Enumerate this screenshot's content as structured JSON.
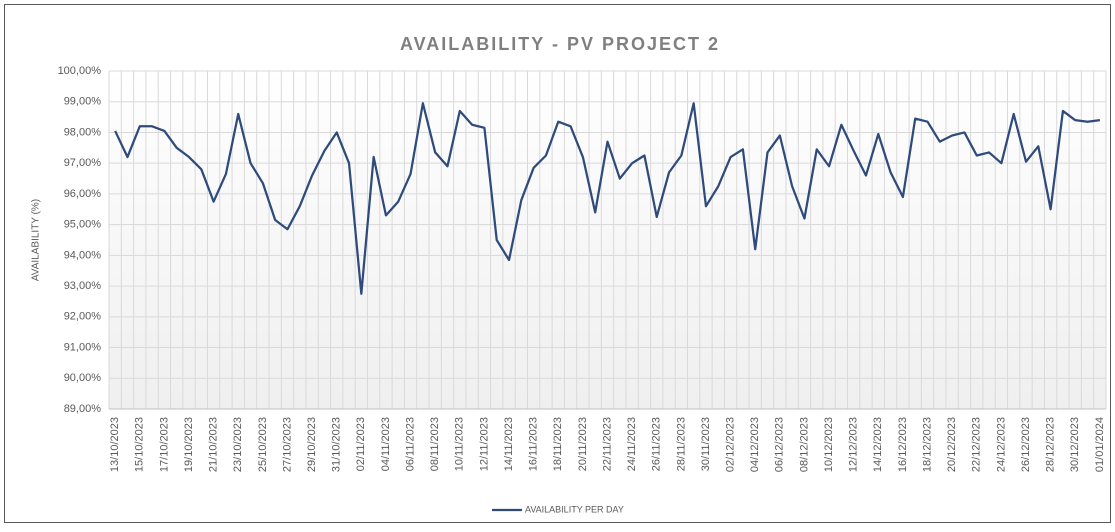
{
  "chart_data": {
    "type": "line",
    "title": "AVAILABILITY - PV PROJECT 2",
    "y_label": "AVAILABILITY (%)",
    "categories": [
      "13/10/2023",
      null,
      "15/10/2023",
      null,
      "17/10/2023",
      null,
      "19/10/2023",
      null,
      "21/10/2023",
      null,
      "23/10/2023",
      null,
      "25/10/2023",
      null,
      "27/10/2023",
      null,
      "29/10/2023",
      null,
      "31/10/2023",
      null,
      "02/11/2023",
      null,
      "04/11/2023",
      null,
      "06/11/2023",
      null,
      "08/11/2023",
      null,
      "10/11/2023",
      null,
      "12/11/2023",
      null,
      "14/11/2023",
      null,
      "16/11/2023",
      null,
      "18/11/2023",
      null,
      "20/11/2023",
      null,
      "22/11/2023",
      null,
      "24/11/2023",
      null,
      "26/11/2023",
      null,
      "28/11/2023",
      null,
      "30/11/2023",
      null,
      "02/12/2023",
      null,
      "04/12/2023",
      null,
      "06/12/2023",
      null,
      "08/12/2023",
      null,
      "10/12/2023",
      null,
      "12/12/2023",
      null,
      "14/12/2023",
      null,
      "16/12/2023",
      null,
      "18/12/2023",
      null,
      "20/12/2023",
      null,
      "22/12/2023",
      null,
      "24/12/2023",
      null,
      "26/12/2023",
      null,
      "28/12/2023",
      null,
      "30/12/2023",
      null,
      "01/01/2024"
    ],
    "series": [
      {
        "name": "AVAILABILITY PER DAY",
        "color": "#2f4b7c",
        "values": [
          98.05,
          97.2,
          98.2,
          98.2,
          98.05,
          97.5,
          97.2,
          96.8,
          95.75,
          96.65,
          98.6,
          97.0,
          96.35,
          95.15,
          94.85,
          95.6,
          96.6,
          97.4,
          98.0,
          97.0,
          92.75,
          97.2,
          95.3,
          95.75,
          96.65,
          98.95,
          97.35,
          96.9,
          98.7,
          98.25,
          98.15,
          94.5,
          93.85,
          95.8,
          96.85,
          97.25,
          98.35,
          98.2,
          97.2,
          95.4,
          97.7,
          96.5,
          97.0,
          97.25,
          95.25,
          96.7,
          97.25,
          98.95,
          95.6,
          96.25,
          97.2,
          97.45,
          94.2,
          97.35,
          97.9,
          96.25,
          95.2,
          97.45,
          96.9,
          98.25,
          97.4,
          96.6,
          97.95,
          96.7,
          95.9,
          98.45,
          98.35,
          97.7,
          97.9,
          98.0,
          97.25,
          97.35,
          97.0,
          98.6,
          97.05,
          97.55,
          95.5,
          98.7,
          98.4,
          98.35,
          98.4
        ]
      }
    ],
    "ylim": [
      89,
      100
    ],
    "yticks": [
      {
        "value": 89,
        "label": "89,00%"
      },
      {
        "value": 90,
        "label": "90,00%"
      },
      {
        "value": 91,
        "label": "91,00%"
      },
      {
        "value": 92,
        "label": "92,00%"
      },
      {
        "value": 93,
        "label": "93,00%"
      },
      {
        "value": 94,
        "label": "94,00%"
      },
      {
        "value": 95,
        "label": "95,00%"
      },
      {
        "value": 96,
        "label": "96,00%"
      },
      {
        "value": 97,
        "label": "97,00%"
      },
      {
        "value": 98,
        "label": "98,00%"
      },
      {
        "value": 99,
        "label": "99,00%"
      },
      {
        "value": 100,
        "label": "100,00%"
      }
    ],
    "grid": true,
    "legend": "bottom"
  }
}
